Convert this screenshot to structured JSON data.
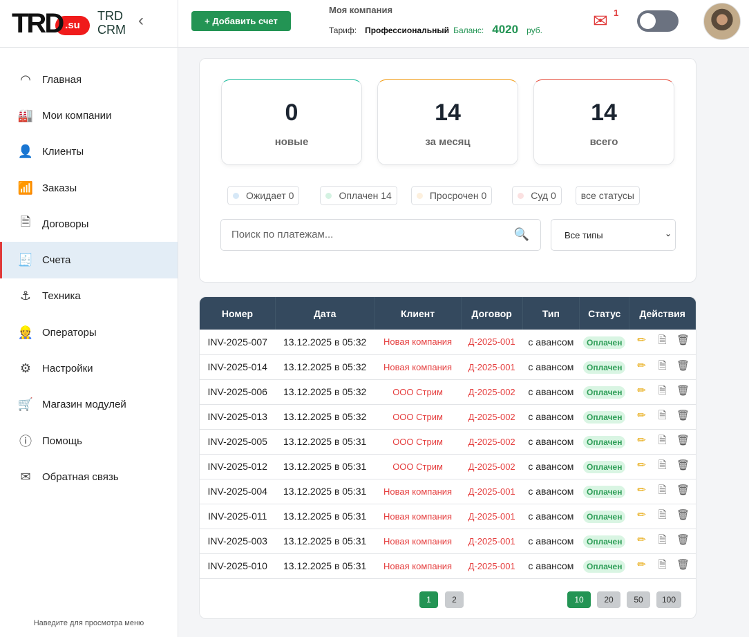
{
  "sidebar": {
    "logo": "TRD",
    "logo_suffix": ".su",
    "brand_line1": "TRD",
    "brand_line2": "CRM",
    "items": [
      {
        "label": "Главная",
        "icon": "gauge-icon"
      },
      {
        "label": "Мои компании",
        "icon": "factory-icon"
      },
      {
        "label": "Клиенты",
        "icon": "user-frame-icon"
      },
      {
        "label": "Заказы",
        "icon": "bar-chart-icon"
      },
      {
        "label": "Договоры",
        "icon": "document-icon"
      },
      {
        "label": "Счета",
        "icon": "receipt-icon",
        "active": true
      },
      {
        "label": "Техника",
        "icon": "crane-icon"
      },
      {
        "label": "Операторы",
        "icon": "worker-icon"
      },
      {
        "label": "Настройки",
        "icon": "gear-icon"
      },
      {
        "label": "Магазин модулей",
        "icon": "cart-icon"
      },
      {
        "label": "Помощь",
        "icon": "question-icon"
      },
      {
        "label": "Обратная связь",
        "icon": "envelope-icon"
      }
    ],
    "hint": "Наведите для просмотра меню"
  },
  "header": {
    "add_button": "+ Добавить счет",
    "company": "Моя компания",
    "tariff_label": "Тариф:",
    "tariff_value": "Профессиональный",
    "balance_label": "Баланс:",
    "balance_value": "4020",
    "currency": "руб.",
    "notifications": "1"
  },
  "stats": [
    {
      "value": "0",
      "label": "новые",
      "color": "#1abc9c"
    },
    {
      "value": "14",
      "label": "за месяц",
      "color": "#f39c12"
    },
    {
      "value": "14",
      "label": "всего",
      "color": "#e74c3c"
    }
  ],
  "filters": [
    {
      "label": "Ожидает 0",
      "dot": "#d6e8f7"
    },
    {
      "label": "Оплачен 14",
      "dot": "#d4f2e2"
    },
    {
      "label": "Просрочен 0",
      "dot": "#fdf0de"
    },
    {
      "label": "Суд 0",
      "dot": "#fbe1e1"
    },
    {
      "label": "все статусы"
    }
  ],
  "search": {
    "placeholder": "Поиск по платежам..."
  },
  "type_select": {
    "value": "Все типы"
  },
  "table": {
    "headers": [
      "Номер",
      "Дата",
      "Клиент",
      "Договор",
      "Тип",
      "Статус",
      "Действия"
    ],
    "rows": [
      [
        "INV-2025-007",
        "13.12.2025 в 05:32",
        "Новая компания",
        "Д-2025-001",
        "с авансом",
        "Оплачен"
      ],
      [
        "INV-2025-014",
        "13.12.2025 в 05:32",
        "Новая компания",
        "Д-2025-001",
        "с авансом",
        "Оплачен"
      ],
      [
        "INV-2025-006",
        "13.12.2025 в 05:32",
        "ООО Стрим",
        "Д-2025-002",
        "с авансом",
        "Оплачен"
      ],
      [
        "INV-2025-013",
        "13.12.2025 в 05:32",
        "ООО Стрим",
        "Д-2025-002",
        "с авансом",
        "Оплачен"
      ],
      [
        "INV-2025-005",
        "13.12.2025 в 05:31",
        "ООО Стрим",
        "Д-2025-002",
        "с авансом",
        "Оплачен"
      ],
      [
        "INV-2025-012",
        "13.12.2025 в 05:31",
        "ООО Стрим",
        "Д-2025-002",
        "с авансом",
        "Оплачен"
      ],
      [
        "INV-2025-004",
        "13.12.2025 в 05:31",
        "Новая компания",
        "Д-2025-001",
        "с авансом",
        "Оплачен"
      ],
      [
        "INV-2025-011",
        "13.12.2025 в 05:31",
        "Новая компания",
        "Д-2025-001",
        "с авансом",
        "Оплачен"
      ],
      [
        "INV-2025-003",
        "13.12.2025 в 05:31",
        "Новая компания",
        "Д-2025-001",
        "с авансом",
        "Оплачен"
      ],
      [
        "INV-2025-010",
        "13.12.2025 в 05:31",
        "Новая компания",
        "Д-2025-001",
        "с авансом",
        "Оплачен"
      ]
    ]
  },
  "pagination": {
    "pages": [
      "1",
      "2"
    ],
    "current": "1",
    "sizes": [
      "10",
      "20",
      "50",
      "100"
    ],
    "current_size": "10"
  }
}
